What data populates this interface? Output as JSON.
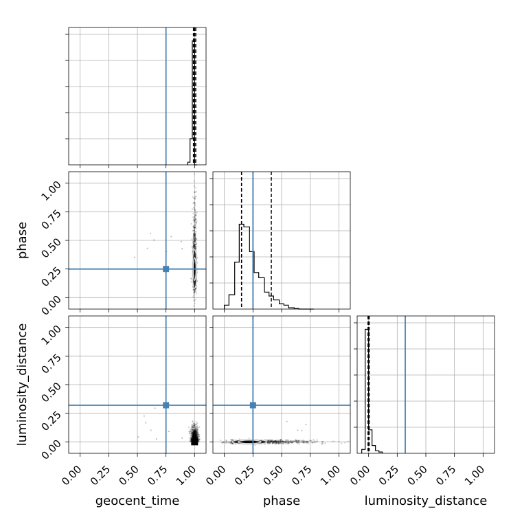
{
  "chart_data": {
    "type": "corner",
    "parameters": [
      "geocent_time",
      "phase",
      "luminosity_distance"
    ],
    "axis_range": [
      -0.1,
      1.1
    ],
    "ticks": [
      0.0,
      0.25,
      0.5,
      0.75,
      1.0
    ],
    "tick_labels": [
      "0.00",
      "0.25",
      "0.50",
      "0.75",
      "1.00"
    ],
    "grid": true,
    "truth_color": "#4682b4",
    "truths": {
      "geocent_time": 0.75,
      "phase": 0.25,
      "luminosity_distance": 0.32
    },
    "histograms": {
      "geocent_time": {
        "bin_edges": [
          0.94,
          0.96,
          0.98,
          1.0,
          1.02
        ],
        "counts": [
          0.02,
          0.2,
          0.95,
          0.0
        ],
        "quantiles": [
          0.99,
          1.0,
          1.01
        ]
      },
      "phase": {
        "bin_edges": [
          0.0,
          0.04,
          0.09,
          0.13,
          0.17,
          0.22,
          0.26,
          0.3,
          0.35,
          0.39,
          0.43,
          0.48,
          0.52,
          0.56,
          0.61,
          0.65,
          0.69,
          0.74,
          0.78
        ],
        "counts": [
          0.03,
          0.11,
          0.36,
          0.65,
          0.63,
          0.44,
          0.28,
          0.24,
          0.13,
          0.1,
          0.07,
          0.04,
          0.03,
          0.01,
          0.005,
          0.0,
          0.0,
          0.0
        ],
        "quantiles": [
          0.15,
          0.25,
          0.41
        ]
      },
      "luminosity_distance": {
        "bin_edges": [
          -0.06,
          -0.03,
          0.0,
          0.03,
          0.06,
          0.09,
          0.12
        ],
        "counts": [
          0.03,
          0.95,
          0.18,
          0.06,
          0.02,
          0.01
        ],
        "quantiles": [
          -0.005,
          0.0,
          0.005
        ]
      }
    },
    "scatter_panels": [
      {
        "x": "geocent_time",
        "y": "phase",
        "center": [
          1.0,
          0.25
        ],
        "contour_radii": [
          [
            0.006,
            0.05
          ],
          [
            0.012,
            0.1
          ],
          [
            0.02,
            0.17
          ]
        ]
      },
      {
        "x": "geocent_time",
        "y": "luminosity_distance",
        "center": [
          1.0,
          0.0
        ],
        "contour_radii": [
          [
            0.01,
            0.008
          ],
          [
            0.018,
            0.015
          ],
          [
            0.025,
            0.02
          ]
        ]
      },
      {
        "x": "phase",
        "y": "luminosity_distance",
        "center": [
          0.22,
          0.0
        ],
        "contour_radii": [
          [
            0.05,
            0.008
          ],
          [
            0.1,
            0.015
          ],
          [
            0.15,
            0.022
          ]
        ]
      }
    ]
  }
}
